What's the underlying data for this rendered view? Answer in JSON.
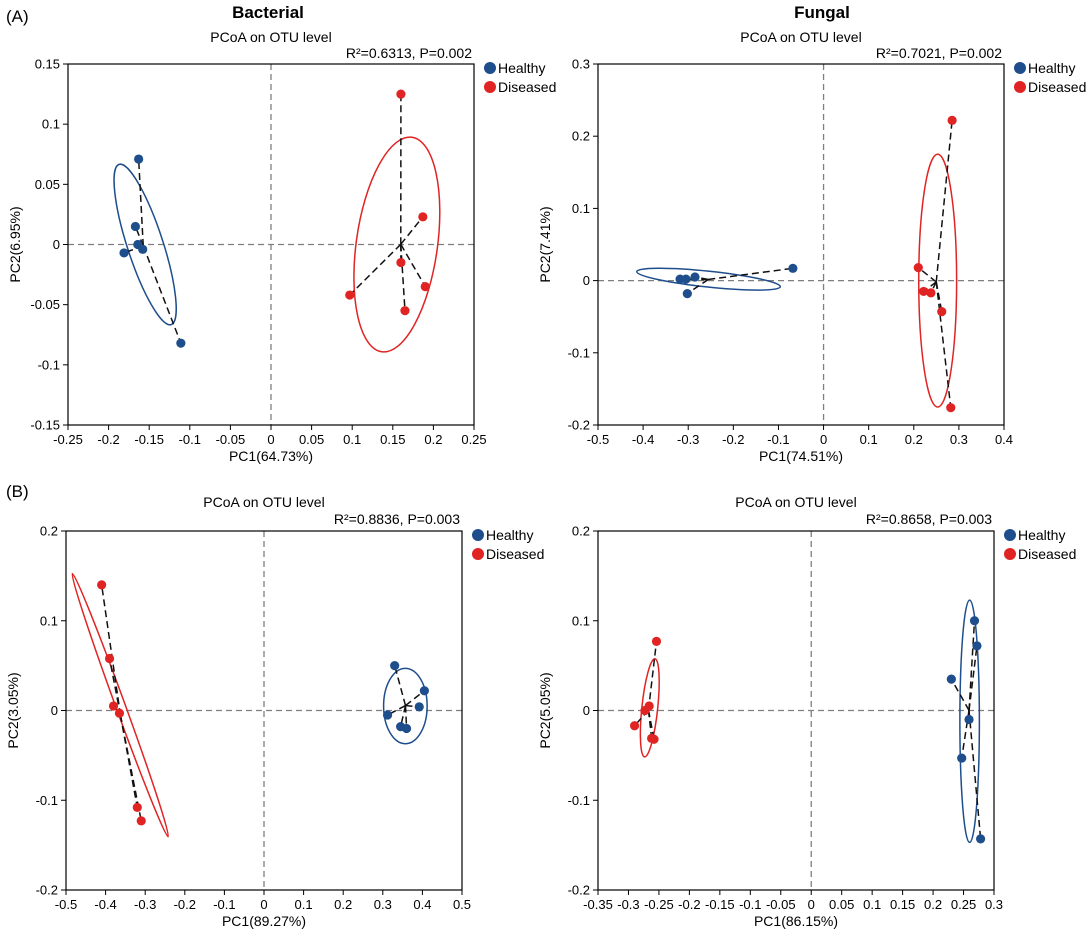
{
  "figure": {
    "section_labels": [
      "(A)",
      "(B)"
    ],
    "column_titles": [
      "Bacterial",
      "Fungal"
    ]
  },
  "colors": {
    "healthy": "#1f4e8c",
    "diseased": "#e02424",
    "axis": "#000000",
    "zero_line": "#7f7f7f"
  },
  "chart_data": [
    {
      "type": "scatter",
      "panel": "A-bacterial",
      "title": "PCoA on OTU level",
      "stats": "R²=0.6313, P=0.002",
      "xlabel": "PC1(64.73%)",
      "ylabel": "PC2(6.95%)",
      "xlim": [
        -0.25,
        0.25
      ],
      "ylim": [
        -0.15,
        0.15
      ],
      "xticks": [
        -0.25,
        -0.2,
        -0.15,
        -0.1,
        -0.05,
        0,
        0.05,
        0.1,
        0.15,
        0.2,
        0.25
      ],
      "xtick_labels": [
        "-0.25",
        "-0.2",
        "-0.15",
        "-0.1",
        "-0.05",
        "0",
        "0.05",
        "0.1",
        "0.15",
        "0.2",
        "0.25"
      ],
      "yticks": [
        -0.15,
        -0.1,
        -0.05,
        0,
        0.05,
        0.1,
        0.15
      ],
      "ytick_labels": [
        "-0.15",
        "-0.1",
        "-0.05",
        "0",
        "0.05",
        "0.1",
        "0.15"
      ],
      "legend": [
        "Healthy",
        "Diseased"
      ],
      "series": [
        {
          "name": "Healthy",
          "points": [
            [
              -0.163,
              0.071
            ],
            [
              -0.167,
              0.015
            ],
            [
              -0.164,
              0.0
            ],
            [
              -0.158,
              -0.004
            ],
            [
              -0.181,
              -0.007
            ],
            [
              -0.111,
              -0.082
            ]
          ],
          "ellipse": {
            "cx": -0.155,
            "cy": 0.0,
            "rx": 0.022,
            "ry": 0.07,
            "angle": -18
          }
        },
        {
          "name": "Diseased",
          "points": [
            [
              0.16,
              0.125
            ],
            [
              0.187,
              0.023
            ],
            [
              0.16,
              -0.015
            ],
            [
              0.19,
              -0.035
            ],
            [
              0.097,
              -0.042
            ],
            [
              0.165,
              -0.055
            ]
          ],
          "ellipse": {
            "cx": 0.155,
            "cy": 0.0,
            "rx": 0.05,
            "ry": 0.09,
            "angle": 8
          }
        }
      ]
    },
    {
      "type": "scatter",
      "panel": "A-fungal",
      "title": "PCoA on OTU level",
      "stats": "R²=0.7021, P=0.002",
      "xlabel": "PC1(74.51%)",
      "ylabel": "PC2(7.41%)",
      "xlim": [
        -0.5,
        0.4
      ],
      "ylim": [
        -0.2,
        0.3
      ],
      "xticks": [
        -0.5,
        -0.4,
        -0.3,
        -0.2,
        -0.1,
        0,
        0.1,
        0.2,
        0.3,
        0.4
      ],
      "xtick_labels": [
        "-0.5",
        "-0.4",
        "-0.3",
        "-0.2",
        "-0.1",
        "0",
        "0.1",
        "0.2",
        "0.3",
        "0.4"
      ],
      "yticks": [
        -0.2,
        -0.1,
        0,
        0.1,
        0.2,
        0.3
      ],
      "ytick_labels": [
        "-0.2",
        "-0.1",
        "0",
        "0.1",
        "0.2",
        "0.3"
      ],
      "legend": [
        "Healthy",
        "Diseased"
      ],
      "series": [
        {
          "name": "Healthy",
          "points": [
            [
              -0.318,
              0.002
            ],
            [
              -0.305,
              0.002
            ],
            [
              -0.285,
              0.005
            ],
            [
              -0.302,
              -0.018
            ],
            [
              -0.068,
              0.017
            ]
          ],
          "ellipse": {
            "cx": -0.255,
            "cy": 0.002,
            "rx": 0.16,
            "ry": 0.011,
            "angle": 6
          }
        },
        {
          "name": "Diseased",
          "points": [
            [
              0.285,
              0.222
            ],
            [
              0.21,
              0.018
            ],
            [
              0.222,
              -0.015
            ],
            [
              0.238,
              -0.017
            ],
            [
              0.262,
              -0.043
            ],
            [
              0.282,
              -0.176
            ]
          ],
          "ellipse": {
            "cx": 0.253,
            "cy": 0.0,
            "rx": 0.042,
            "ry": 0.175,
            "angle": 0
          }
        }
      ]
    },
    {
      "type": "scatter",
      "panel": "B-bacterial",
      "title": "PCoA on OTU level",
      "stats": "R²=0.8836, P=0.003",
      "xlabel": "PC1(89.27%)",
      "ylabel": "PC2(3.05%)",
      "xlim": [
        -0.5,
        0.5
      ],
      "ylim": [
        -0.2,
        0.2
      ],
      "xticks": [
        -0.5,
        -0.4,
        -0.3,
        -0.2,
        -0.1,
        0,
        0.1,
        0.2,
        0.3,
        0.4,
        0.5
      ],
      "xtick_labels": [
        "-0.5",
        "-0.4",
        "-0.3",
        "-0.2",
        "-0.1",
        "0",
        "0.1",
        "0.2",
        "0.3",
        "0.4",
        "0.5"
      ],
      "yticks": [
        -0.2,
        -0.1,
        0,
        0.1,
        0.2
      ],
      "ytick_labels": [
        "-0.2",
        "-0.1",
        "0",
        "0.1",
        "0.2"
      ],
      "legend": [
        "Healthy",
        "Diseased"
      ],
      "series": [
        {
          "name": "Healthy",
          "points": [
            [
              0.33,
              0.05
            ],
            [
              0.405,
              0.022
            ],
            [
              0.392,
              0.004
            ],
            [
              0.312,
              -0.005
            ],
            [
              0.345,
              -0.018
            ],
            [
              0.36,
              -0.02
            ]
          ],
          "ellipse": {
            "cx": 0.357,
            "cy": 0.005,
            "rx": 0.055,
            "ry": 0.042,
            "angle": 0
          }
        },
        {
          "name": "Diseased",
          "points": [
            [
              -0.41,
              0.14
            ],
            [
              -0.39,
              0.058
            ],
            [
              -0.38,
              0.005
            ],
            [
              -0.365,
              -0.003
            ],
            [
              -0.32,
              -0.108
            ],
            [
              -0.31,
              -0.123
            ]
          ],
          "ellipse": {
            "cx": -0.363,
            "cy": 0.006,
            "rx": 0.012,
            "ry": 0.156,
            "angle": -20
          }
        }
      ]
    },
    {
      "type": "scatter",
      "panel": "B-fungal",
      "title": "PCoA on OTU level",
      "stats": "R²=0.8658, P=0.003",
      "xlabel": "PC1(86.15%)",
      "ylabel": "PC2(5.05%)",
      "xlim": [
        -0.35,
        0.3
      ],
      "ylim": [
        -0.2,
        0.2
      ],
      "xticks": [
        -0.35,
        -0.3,
        -0.25,
        -0.2,
        -0.15,
        -0.1,
        -0.05,
        0,
        0.05,
        0.1,
        0.15,
        0.2,
        0.25,
        0.3
      ],
      "xtick_labels": [
        "-0.35",
        "-0.3",
        "-0.25",
        "-0.2",
        "-0.15",
        "-0.1",
        "-0.05",
        "0",
        "0.05",
        "0.1",
        "0.15",
        "0.2",
        "0.25",
        "0.3"
      ],
      "yticks": [
        -0.2,
        -0.1,
        0,
        0.1,
        0.2
      ],
      "ytick_labels": [
        "-0.2",
        "-0.1",
        "0",
        "0.1",
        "0.2"
      ],
      "legend": [
        "Healthy",
        "Diseased"
      ],
      "series": [
        {
          "name": "Healthy",
          "points": [
            [
              0.268,
              0.1
            ],
            [
              0.272,
              0.072
            ],
            [
              0.23,
              0.035
            ],
            [
              0.259,
              -0.01
            ],
            [
              0.247,
              -0.053
            ],
            [
              0.278,
              -0.143
            ]
          ],
          "ellipse": {
            "cx": 0.26,
            "cy": -0.012,
            "rx": 0.016,
            "ry": 0.135,
            "angle": 0
          }
        },
        {
          "name": "Diseased",
          "points": [
            [
              -0.254,
              0.077
            ],
            [
              -0.266,
              0.005
            ],
            [
              -0.273,
              0.0
            ],
            [
              -0.29,
              -0.017
            ],
            [
              -0.262,
              -0.031
            ],
            [
              -0.258,
              -0.032
            ]
          ],
          "ellipse": {
            "cx": -0.265,
            "cy": 0.003,
            "rx": 0.013,
            "ry": 0.055,
            "angle": 6
          }
        }
      ]
    }
  ]
}
